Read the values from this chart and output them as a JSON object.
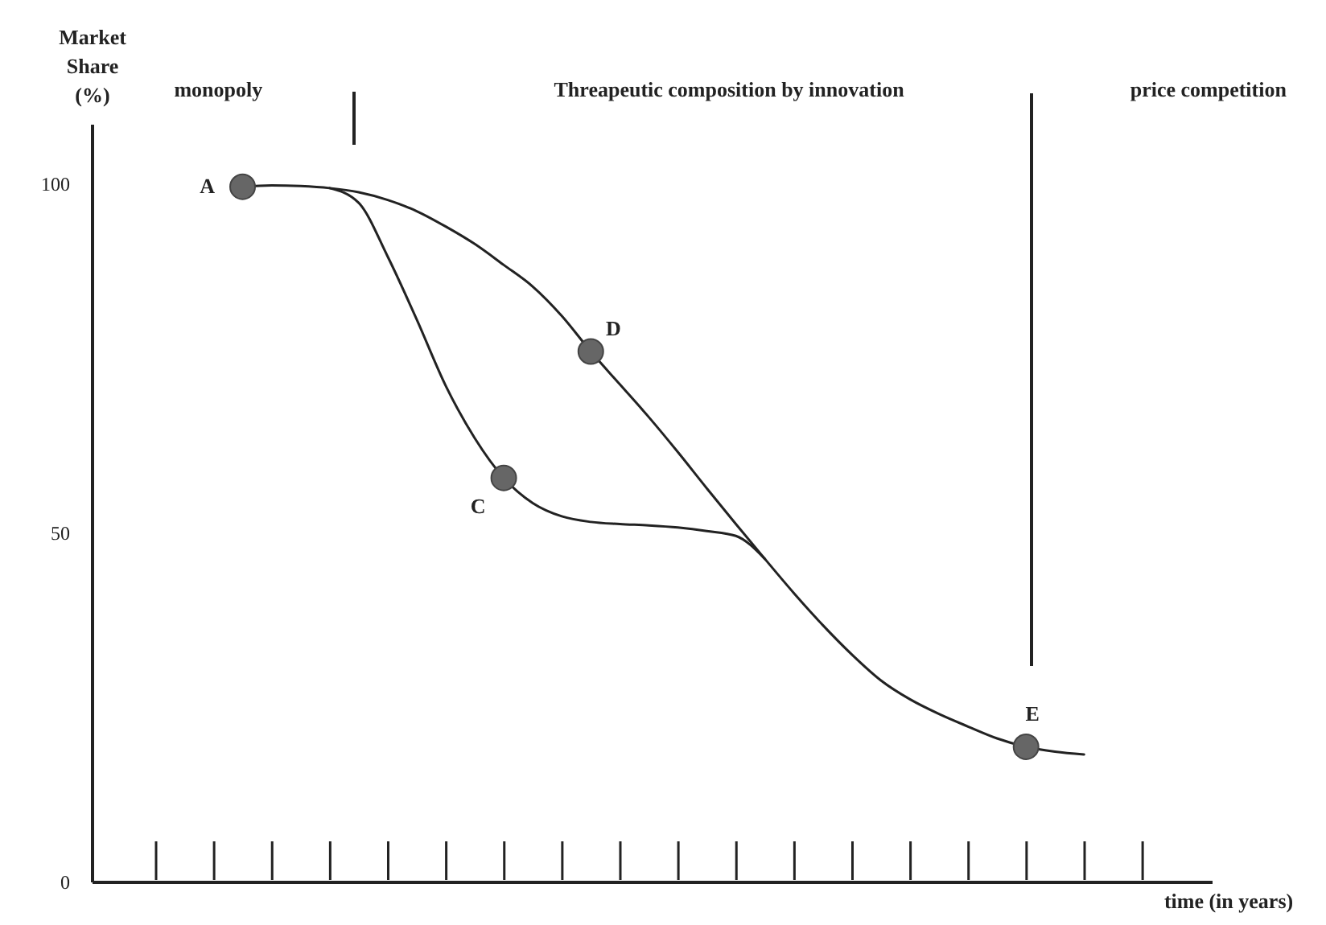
{
  "chart_data": {
    "type": "line",
    "ylabel": "Market Share (%)",
    "xlabel": "time (in years)",
    "categories": [
      null,
      null,
      null,
      null,
      null,
      null,
      null,
      null,
      null,
      null,
      null,
      null,
      null,
      null,
      null,
      null,
      null,
      null,
      null,
      null,
      null,
      null,
      null,
      null,
      null,
      null,
      null,
      null,
      null,
      null,
      null,
      null,
      null,
      null,
      null,
      null,
      null,
      null,
      null
    ],
    "ylim": [
      0,
      108.5
    ],
    "yticks": [
      0,
      50,
      100
    ],
    "series": [
      {
        "color": "#222222",
        "values": [
          null,
          null,
          null,
          null,
          null,
          99.5,
          99.7,
          99.6,
          99.3,
          98.7,
          97.6,
          96,
          93.8,
          91.3,
          88.3,
          85.2,
          81,
          75.9,
          71.2,
          66.5,
          61.5,
          56.3,
          51.2,
          46.2,
          41.3,
          36.7,
          32.5,
          28.8,
          26.1,
          24,
          22.2,
          20.5,
          19.3,
          18.6,
          18.2,
          null,
          null,
          null,
          null
        ]
      },
      {
        "color": "#222222",
        "values": [
          null,
          null,
          null,
          null,
          null,
          null,
          null,
          null,
          99.3,
          97.2,
          89.5,
          80.5,
          71,
          63.5,
          57.8,
          54.2,
          52.3,
          51.5,
          51.2,
          51,
          50.7,
          50.2,
          49.5,
          46.2,
          null,
          null,
          null,
          null,
          null,
          null,
          null,
          null,
          null,
          null,
          null,
          null,
          null,
          null,
          null
        ]
      },
      {
        "type": "scatter",
        "marker": "circle",
        "color": "#666666",
        "values": [
          null,
          null,
          null,
          null,
          null,
          99.5,
          null,
          null,
          null,
          null,
          null,
          null,
          null,
          null,
          57.8,
          null,
          null,
          75.9,
          null,
          null,
          null,
          null,
          null,
          null,
          null,
          null,
          null,
          null,
          null,
          null,
          null,
          null,
          19.3,
          null,
          null,
          null,
          null,
          null,
          null
        ]
      }
    ],
    "annotations": [
      "A",
      "C",
      "D",
      "E",
      "monopoly",
      "Threapeutic composition by innovation",
      "price competition"
    ]
  }
}
